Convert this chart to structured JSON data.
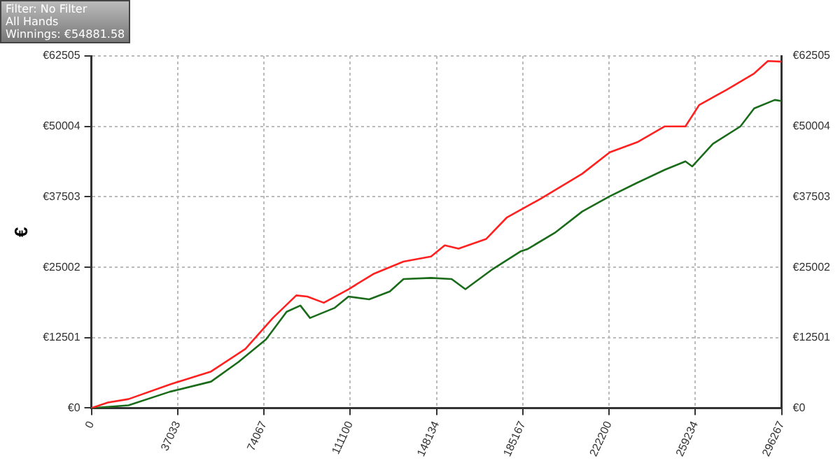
{
  "chart_data": {
    "type": "line",
    "ylabel": "€",
    "annotations": [
      "Filter: No Filter",
      "All Hands",
      "Winnings: €54881.58"
    ],
    "xlim": [
      0,
      296267
    ],
    "xticks": [
      0,
      37033,
      74067,
      111100,
      148134,
      185167,
      222200,
      259234,
      296267
    ],
    "ylim": [
      0,
      62505
    ],
    "yticks": [
      {
        "value": 0,
        "label": "€0"
      },
      {
        "value": 12501,
        "label": "€12501"
      },
      {
        "value": 25002,
        "label": "€25002"
      },
      {
        "value": 37503,
        "label": "€37503"
      },
      {
        "value": 50004,
        "label": "€50004"
      },
      {
        "value": 62505,
        "label": "€62505"
      }
    ],
    "y2lim": [
      0,
      62505
    ],
    "y2ticks": [
      {
        "value": 0,
        "label": "€0"
      },
      {
        "value": 12501,
        "label": "€12501"
      },
      {
        "value": 25002,
        "label": "€25002"
      },
      {
        "value": 37503,
        "label": "€37503"
      },
      {
        "value": 50004,
        "label": "€50004"
      },
      {
        "value": 62505,
        "label": "€62505"
      }
    ],
    "grid": true,
    "legend": false,
    "marker": "none",
    "line_style": "solid",
    "series": [
      {
        "color": "#ff2020",
        "x": [
          0,
          7082,
          15935,
          33641,
          51347,
          66100,
          77900,
          87940,
          92660,
          99740,
          110370,
          121000,
          133970,
          145780,
          151680,
          157580,
          169390,
          178240,
          192990,
          210700,
          222500,
          234310,
          246110,
          254970,
          260870,
          272670,
          284470,
          290380,
          296267
        ],
        "values": [
          0,
          1000,
          1600,
          4200,
          6500,
          10500,
          16000,
          20000,
          19800,
          18700,
          21100,
          23800,
          26000,
          26900,
          28900,
          28300,
          30000,
          33800,
          37200,
          41600,
          45400,
          47200,
          50000,
          50000,
          53800,
          56500,
          59400,
          61600,
          61500
        ]
      },
      {
        "color": "#1a6b1a",
        "x": [
          0,
          15935,
          33641,
          51347,
          63150,
          74950,
          83800,
          89700,
          93840,
          104470,
          110370,
          119220,
          128070,
          133970,
          145780,
          154630,
          160530,
          172340,
          184140,
          187090,
          198890,
          210700,
          222500,
          234310,
          246110,
          254970,
          257920,
          266770,
          278570,
          284470,
          293330,
          296267
        ],
        "values": [
          0,
          500,
          2900,
          4700,
          8200,
          12200,
          17100,
          18200,
          16000,
          17800,
          19800,
          19300,
          20700,
          22900,
          23100,
          22900,
          21100,
          24700,
          27800,
          28200,
          31100,
          34900,
          37600,
          40000,
          42300,
          43800,
          42900,
          46900,
          50000,
          53200,
          54700,
          54500
        ]
      }
    ]
  }
}
